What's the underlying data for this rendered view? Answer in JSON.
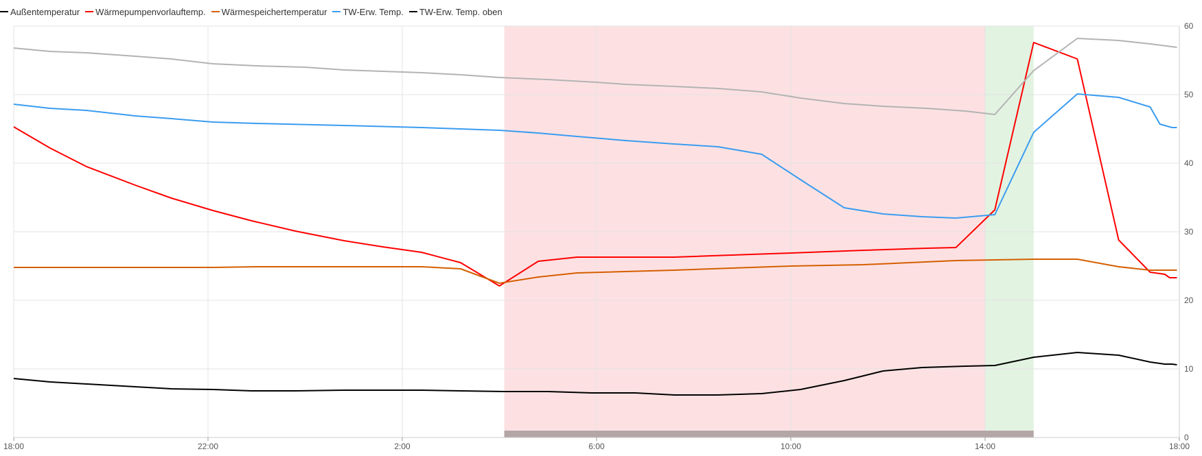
{
  "chart_data": {
    "type": "line",
    "title": "",
    "xlabel": "",
    "ylabel": "",
    "ylim": [
      0,
      60
    ],
    "xlim": [
      "18:00",
      "18:00 (+24h)"
    ],
    "x_tick_labels": [
      "18:00",
      "22:00",
      "2:00",
      "6:00",
      "10:00",
      "14:00",
      "18:00"
    ],
    "y_tick_labels": [
      "0",
      "10",
      "20",
      "30",
      "40",
      "50",
      "60"
    ],
    "grid": true,
    "legend_position": "top-left",
    "series": [
      {
        "name": "Außentemperatur",
        "color": "#000000",
        "points": [
          [
            0,
            8.6
          ],
          [
            0.75,
            8.1
          ],
          [
            1.5,
            7.8
          ],
          [
            2.5,
            7.4
          ],
          [
            3.25,
            7.1
          ],
          [
            4.1,
            7.0
          ],
          [
            4.9,
            6.8
          ],
          [
            5.8,
            6.8
          ],
          [
            6.8,
            6.9
          ],
          [
            7.6,
            6.9
          ],
          [
            8.4,
            6.9
          ],
          [
            9.2,
            6.8
          ],
          [
            10.1,
            6.7
          ],
          [
            11.0,
            6.7
          ],
          [
            11.9,
            6.5
          ],
          [
            12.8,
            6.5
          ],
          [
            13.6,
            6.2
          ],
          [
            14.5,
            6.2
          ],
          [
            15.4,
            6.4
          ],
          [
            16.2,
            7.0
          ],
          [
            17.1,
            8.3
          ],
          [
            17.9,
            9.7
          ],
          [
            18.7,
            10.2
          ],
          [
            19.6,
            10.4
          ],
          [
            20.2,
            10.5
          ],
          [
            21.0,
            11.7
          ],
          [
            21.9,
            12.4
          ],
          [
            22.75,
            12.0
          ],
          [
            23.4,
            11.0
          ],
          [
            23.7,
            10.7
          ],
          [
            23.85,
            10.7
          ],
          [
            23.95,
            10.6
          ]
        ]
      },
      {
        "name": "Wärmepumpenvorlauftemp.",
        "color": "#ff0000",
        "points": [
          [
            0,
            45.3
          ],
          [
            0.75,
            42.2
          ],
          [
            1.5,
            39.5
          ],
          [
            2.5,
            36.8
          ],
          [
            3.25,
            34.9
          ],
          [
            4.1,
            33.1
          ],
          [
            4.9,
            31.6
          ],
          [
            5.8,
            30.1
          ],
          [
            6.8,
            28.7
          ],
          [
            7.6,
            27.8
          ],
          [
            8.4,
            27.0
          ],
          [
            9.2,
            25.5
          ],
          [
            10.0,
            22.1
          ],
          [
            10.8,
            25.7
          ],
          [
            11.6,
            26.3
          ],
          [
            12.6,
            26.3
          ],
          [
            13.6,
            26.3
          ],
          [
            16.0,
            26.9
          ],
          [
            17.5,
            27.3
          ],
          [
            18.8,
            27.6
          ],
          [
            19.4,
            27.7
          ],
          [
            20.2,
            33.2
          ],
          [
            21.0,
            57.6
          ],
          [
            21.9,
            55.2
          ],
          [
            22.75,
            28.8
          ],
          [
            23.4,
            24.1
          ],
          [
            23.7,
            23.8
          ],
          [
            23.8,
            23.3
          ],
          [
            23.95,
            23.3
          ]
        ]
      },
      {
        "name": "Wärmespeichertemperatur",
        "color": "#d55e00",
        "points": [
          [
            0,
            24.8
          ],
          [
            1.0,
            24.8
          ],
          [
            2.0,
            24.8
          ],
          [
            3.0,
            24.8
          ],
          [
            4.1,
            24.8
          ],
          [
            5.0,
            24.9
          ],
          [
            6.0,
            24.9
          ],
          [
            7.0,
            24.9
          ],
          [
            8.0,
            24.9
          ],
          [
            8.4,
            24.9
          ],
          [
            9.2,
            24.6
          ],
          [
            10.0,
            22.5
          ],
          [
            10.8,
            23.4
          ],
          [
            11.6,
            24.0
          ],
          [
            13.6,
            24.4
          ],
          [
            16.0,
            25.0
          ],
          [
            17.5,
            25.2
          ],
          [
            19.4,
            25.8
          ],
          [
            20.2,
            25.9
          ],
          [
            21.0,
            26.0
          ],
          [
            21.9,
            26.0
          ],
          [
            22.75,
            24.9
          ],
          [
            23.4,
            24.4
          ],
          [
            23.95,
            24.4
          ]
        ]
      },
      {
        "name": "TW-Erw. Temp.",
        "color": "#3a9cf0",
        "points": [
          [
            0,
            48.6
          ],
          [
            0.75,
            48.0
          ],
          [
            1.5,
            47.7
          ],
          [
            2.5,
            46.9
          ],
          [
            3.25,
            46.5
          ],
          [
            4.1,
            46.0
          ],
          [
            5.0,
            45.8
          ],
          [
            6.8,
            45.5
          ],
          [
            8.4,
            45.2
          ],
          [
            10.0,
            44.8
          ],
          [
            10.8,
            44.4
          ],
          [
            11.6,
            43.9
          ],
          [
            12.6,
            43.3
          ],
          [
            13.6,
            42.8
          ],
          [
            14.5,
            42.4
          ],
          [
            15.4,
            41.3
          ],
          [
            16.2,
            37.6
          ],
          [
            17.1,
            33.5
          ],
          [
            17.9,
            32.6
          ],
          [
            18.7,
            32.2
          ],
          [
            19.4,
            32.0
          ],
          [
            20.2,
            32.5
          ],
          [
            21.0,
            44.5
          ],
          [
            21.9,
            50.1
          ],
          [
            22.75,
            49.6
          ],
          [
            23.4,
            48.2
          ],
          [
            23.6,
            45.7
          ],
          [
            23.85,
            45.2
          ],
          [
            23.95,
            45.2
          ]
        ]
      },
      {
        "name": "TW-Erw. Temp. oben",
        "color": "#000000",
        "plot_color": "#b3b3b3",
        "points": [
          [
            0,
            56.8
          ],
          [
            0.75,
            56.3
          ],
          [
            1.5,
            56.1
          ],
          [
            2.5,
            55.6
          ],
          [
            3.25,
            55.2
          ],
          [
            4.1,
            54.5
          ],
          [
            5.0,
            54.2
          ],
          [
            6.0,
            54.0
          ],
          [
            6.8,
            53.6
          ],
          [
            8.4,
            53.2
          ],
          [
            9.2,
            52.9
          ],
          [
            10.0,
            52.5
          ],
          [
            11.0,
            52.2
          ],
          [
            12.0,
            51.8
          ],
          [
            12.6,
            51.5
          ],
          [
            13.6,
            51.2
          ],
          [
            14.5,
            50.9
          ],
          [
            15.4,
            50.4
          ],
          [
            16.2,
            49.5
          ],
          [
            17.1,
            48.7
          ],
          [
            17.9,
            48.3
          ],
          [
            18.8,
            48.0
          ],
          [
            19.6,
            47.6
          ],
          [
            20.2,
            47.1
          ],
          [
            21.0,
            53.5
          ],
          [
            21.9,
            58.2
          ],
          [
            22.75,
            57.9
          ],
          [
            23.4,
            57.4
          ],
          [
            23.95,
            56.9
          ]
        ]
      }
    ],
    "bands": [
      {
        "from": 10.1,
        "to": 20.0,
        "color": "#fde1e2"
      },
      {
        "from": 20.0,
        "to": 21.0,
        "color": "#e2f3e2"
      }
    ],
    "bottom_bar": {
      "from": 10.1,
      "to": 21.0,
      "color": "#b4a6a6"
    }
  }
}
